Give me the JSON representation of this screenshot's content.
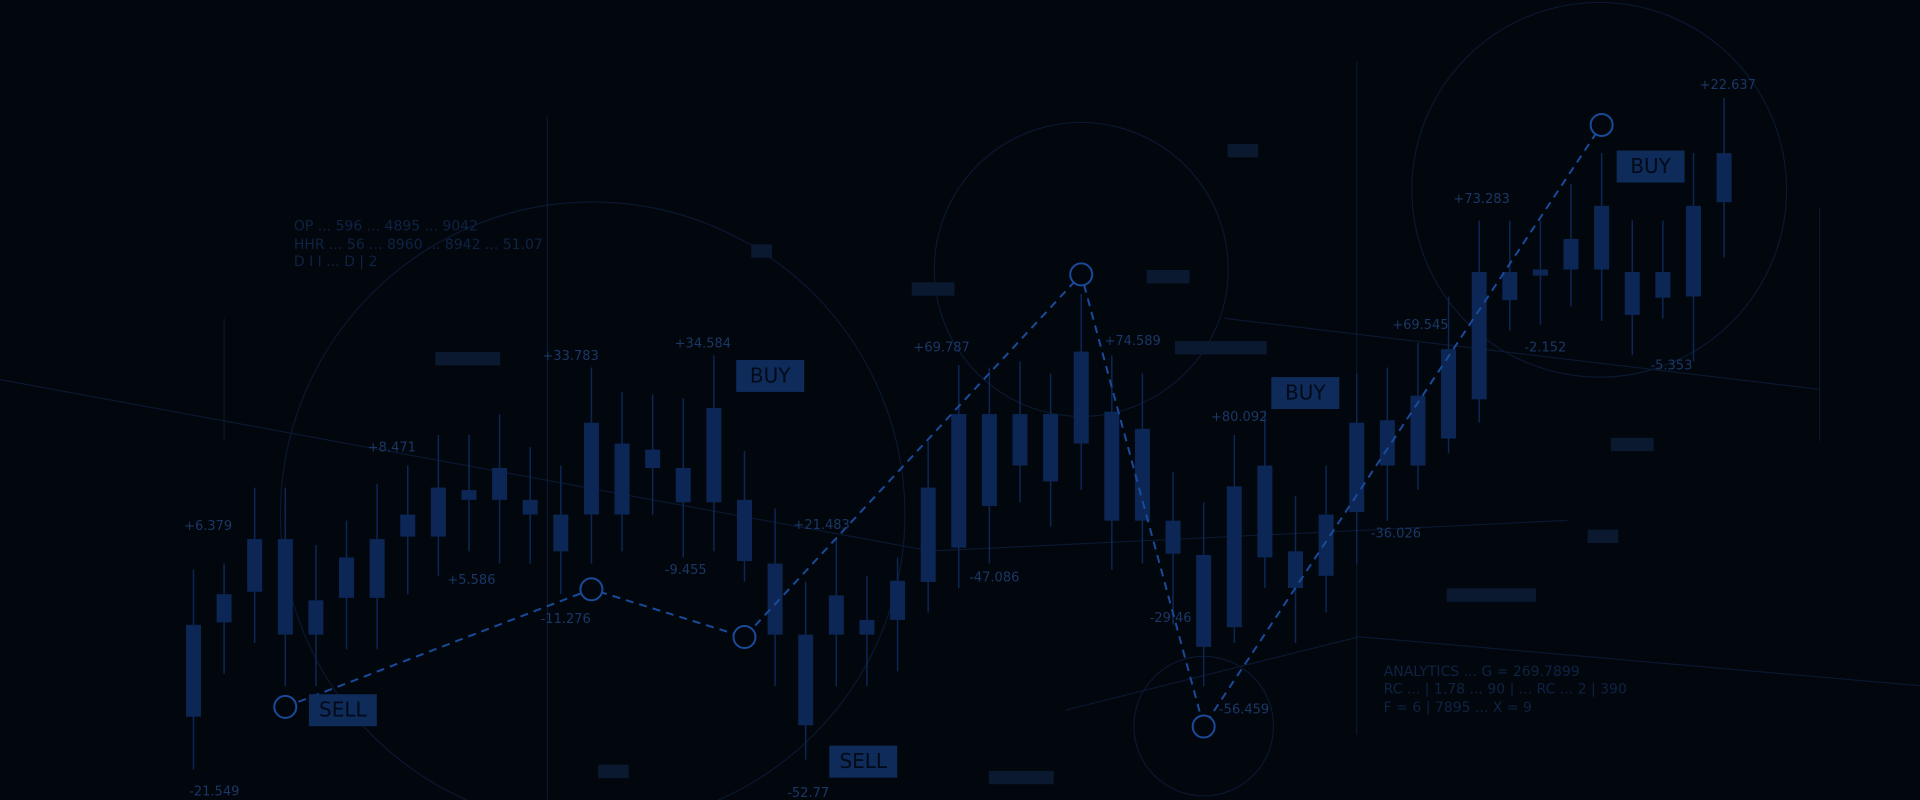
{
  "chart_data": {
    "type": "candlestick",
    "color": "#0c2756",
    "ylim": [
      0,
      653
    ],
    "high": [
      188,
      193,
      255,
      255,
      208,
      228,
      258,
      273,
      298,
      298,
      315,
      288,
      273,
      353,
      333,
      331,
      328,
      363,
      285,
      238,
      178,
      213,
      183,
      198,
      293,
      355,
      353,
      358,
      348,
      413,
      363,
      348,
      268,
      243,
      298,
      318,
      248,
      273,
      348,
      353,
      373,
      411,
      473,
      473,
      473,
      503,
      528,
      473,
      473,
      528,
      573
    ],
    "low": [
      25,
      103,
      128,
      93,
      93,
      123,
      123,
      168,
      183,
      203,
      193,
      193,
      168,
      193,
      203,
      233,
      198,
      203,
      178,
      93,
      33,
      93,
      93,
      105,
      153,
      173,
      193,
      243,
      223,
      253,
      188,
      193,
      143,
      93,
      128,
      173,
      128,
      153,
      193,
      228,
      253,
      283,
      308,
      383,
      388,
      403,
      391,
      363,
      393,
      358,
      443
    ],
    "open": [
      68,
      145,
      170,
      135,
      135,
      165,
      165,
      215,
      215,
      245,
      245,
      233,
      203,
      233,
      233,
      271,
      243,
      243,
      195,
      135,
      61,
      135,
      135,
      147,
      178,
      206,
      240,
      273,
      260,
      291,
      228,
      228,
      201,
      125,
      141,
      198,
      173,
      183,
      235,
      273,
      273,
      295,
      327,
      408,
      428,
      433,
      433,
      396,
      410,
      411,
      488
    ],
    "close": [
      143,
      168,
      213,
      213,
      163,
      198,
      213,
      233,
      255,
      253,
      271,
      245,
      233,
      308,
      291,
      286,
      271,
      320,
      245,
      193,
      135,
      167,
      147,
      179,
      255,
      315,
      315,
      315,
      315,
      366,
      317,
      303,
      228,
      200,
      256,
      273,
      203,
      233,
      308,
      310,
      330,
      368,
      431,
      431,
      433,
      458,
      485,
      431,
      431,
      485,
      528
    ],
    "trend": {
      "values": [
        76,
        172,
        133,
        429,
        60,
        551
      ],
      "color": "#1a4a9a"
    },
    "signals": [
      "SELL",
      "BUY",
      "SELL",
      "BUY",
      "BUY"
    ],
    "annotations": [
      "+6.379",
      "-21.549",
      "+8.471",
      "+5.586",
      "+33.783",
      "-11.276",
      "+34.584",
      "-9.455",
      "-52.77",
      "+21.483",
      "+69.787",
      "-47.086",
      "+74.589",
      "-29.46",
      "-56.459",
      "+80.092",
      "-36.026",
      "+69.545",
      "+73.283",
      "-2.152",
      "+22.637",
      "-5.353"
    ],
    "notes": [
      "OP ... 596 ... 4895 ... 9042",
      "HHR ... 56 ... 8960 ... 8942 ... 51.07",
      "D I I ... D | 2",
      "ANALYTICS ... G = 269.7899",
      "RC ... | 1.78 ... 90 | ... RC ... 2 | 390",
      "F = 6 | 7895 ... X = 9"
    ]
  }
}
